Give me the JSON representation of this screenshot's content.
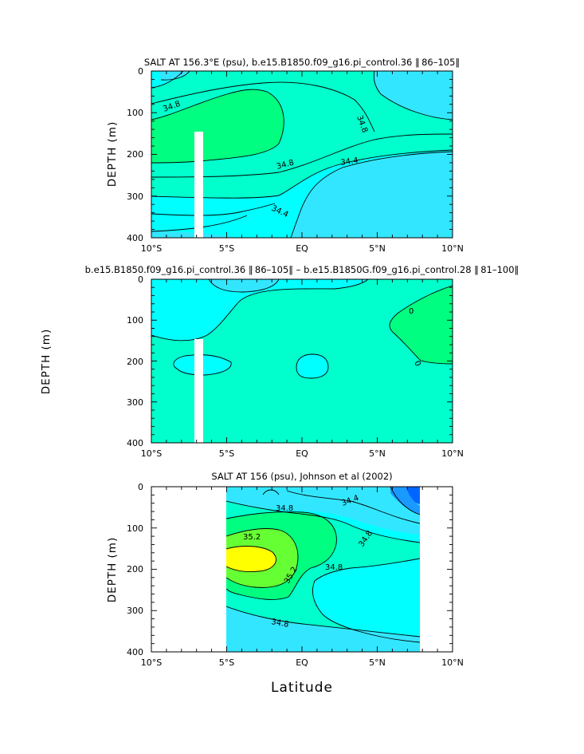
{
  "chart_data": [
    {
      "type": "contour",
      "title": "SALT AT 156.3°E (psu), b.e15.B1850.f09_g16.pi_control.36 ‖ 86–105‖",
      "xlabel": "",
      "ylabel": "DEPTH (m)",
      "xticks": [
        "10°S",
        "5°S",
        "EQ",
        "5°N",
        "10°N"
      ],
      "yticks": [
        "0",
        "100",
        "200",
        "300",
        "400"
      ],
      "xlim": [
        -10,
        10
      ],
      "ylim": [
        400,
        0
      ],
      "contour_labels": [
        "34.8",
        "34.8",
        "34.8",
        "34.4",
        "34.4"
      ],
      "colors": {
        "lightcyan": "#33e6ff",
        "cyan": "#00ffff",
        "aqua_green": "#00ffcc",
        "green": "#00ff80"
      }
    },
    {
      "type": "contour",
      "title": "b.e15.B1850.f09_g16.pi_control.36 ‖ 86–105‖ – b.e15.B1850G.f09_g16.pi_control.28 ‖ 81–100‖",
      "xlabel": "",
      "ylabel": "DEPTH (m)",
      "xticks": [
        "10°S",
        "5°S",
        "EQ",
        "5°N",
        "10°N"
      ],
      "yticks": [
        "0",
        "100",
        "200",
        "300",
        "400"
      ],
      "xlim": [
        -10,
        10
      ],
      "ylim": [
        400,
        0
      ],
      "contour_labels": [
        "0",
        "0"
      ],
      "colors": {
        "lightcyan": "#33e6ff",
        "cyan": "#00ffff",
        "aqua_green": "#00ffcc",
        "green": "#00ff80"
      }
    },
    {
      "type": "contour",
      "title": "SALT AT 156 (psu), Johnson et al (2002)",
      "xlabel": "Latitude",
      "ylabel": "DEPTH (m)",
      "xticks": [
        "10°S",
        "5°S",
        "EQ",
        "5°N",
        "10°N"
      ],
      "yticks": [
        "0",
        "100",
        "200",
        "300",
        "400"
      ],
      "xlim": [
        -10,
        10
      ],
      "ylim": [
        400,
        0
      ],
      "data_xrange": [
        -5,
        8
      ],
      "contour_labels": [
        "34.8",
        "34.4",
        "35.2",
        "34.8",
        "35.2",
        "34.8",
        "34.8"
      ],
      "colors": {
        "lightcyan": "#33e6ff",
        "cyan": "#00ffff",
        "aqua_green": "#00ffcc",
        "green": "#00ff80",
        "lime": "#66ff33",
        "yellow": "#ffff00",
        "blue": "#0066ff"
      }
    }
  ]
}
